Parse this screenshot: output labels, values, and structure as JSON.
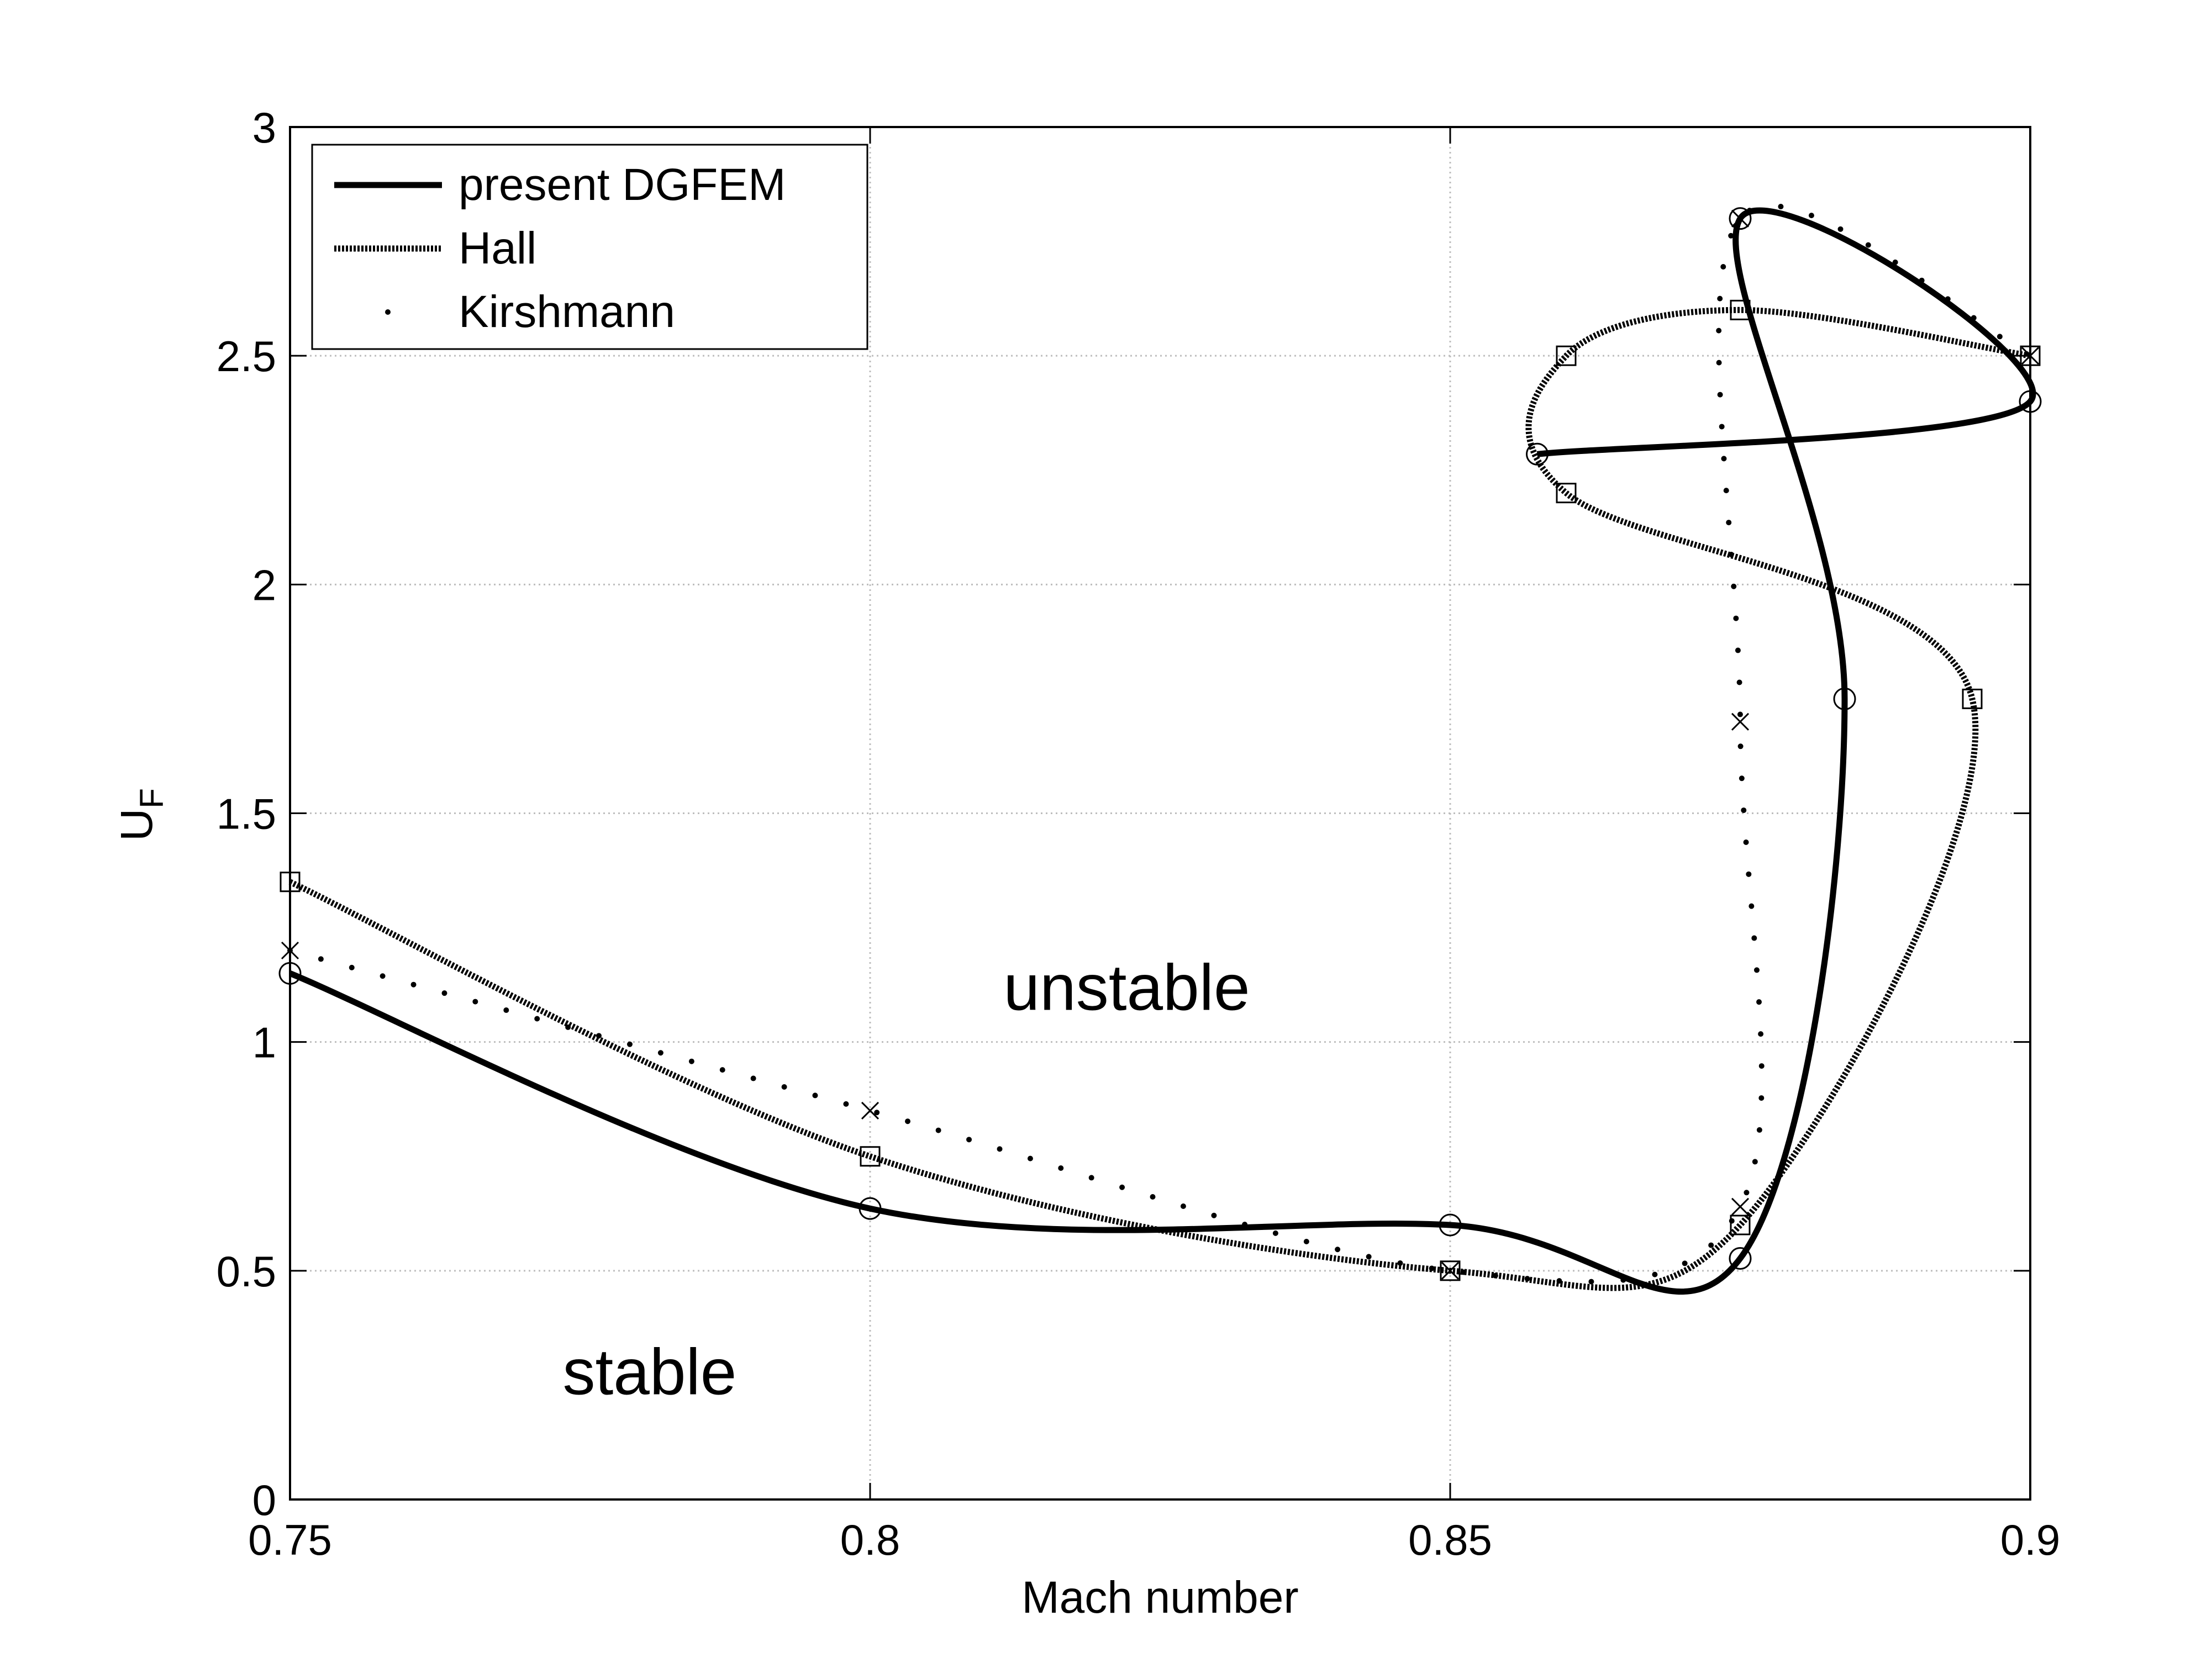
{
  "chart_data": {
    "type": "line",
    "xlabel": "Mach number",
    "ylabel": "U",
    "ylabel_subscript": "F",
    "xlim": [
      0.75,
      0.9
    ],
    "ylim": [
      0,
      3
    ],
    "xticks": [
      0.75,
      0.8,
      0.85,
      0.9
    ],
    "yticks": [
      0,
      0.5,
      1,
      1.5,
      2,
      2.5,
      3
    ],
    "xtick_labels": [
      "0.75",
      "0.8",
      "0.85",
      "0.9"
    ],
    "ytick_labels": [
      "0",
      "0.5",
      "1",
      "1.5",
      "2",
      "2.5",
      "3"
    ],
    "grid": true,
    "legend_position": "top-left",
    "annotations": [
      {
        "text": "unstable",
        "x": 0.8115,
        "y": 1.07
      },
      {
        "text": "stable",
        "x": 0.7735,
        "y": 0.23
      }
    ],
    "series": [
      {
        "name": "present DGFEM",
        "style": "solid-thick",
        "marker": "circle",
        "points": [
          [
            0.75,
            1.15
          ],
          [
            0.8,
            0.636
          ],
          [
            0.85,
            0.6
          ],
          [
            0.875,
            0.527
          ],
          [
            0.884,
            1.75
          ],
          [
            0.875,
            2.8
          ],
          [
            0.9,
            2.4
          ],
          [
            0.8575,
            2.285
          ]
        ],
        "markers": [
          [
            0.75,
            1.15
          ],
          [
            0.8,
            0.636
          ],
          [
            0.85,
            0.6
          ],
          [
            0.875,
            0.527
          ],
          [
            0.884,
            1.75
          ],
          [
            0.8575,
            2.285
          ],
          [
            0.875,
            2.8
          ],
          [
            0.9,
            2.4
          ]
        ]
      },
      {
        "name": "Hall",
        "style": "dashed-thick",
        "marker": "square",
        "points": [
          [
            0.75,
            1.35
          ],
          [
            0.8,
            0.75
          ],
          [
            0.85,
            0.5
          ],
          [
            0.875,
            0.6
          ],
          [
            0.895,
            1.75
          ],
          [
            0.86,
            2.2
          ],
          [
            0.86,
            2.5
          ],
          [
            0.875,
            2.6
          ],
          [
            0.9,
            2.5
          ]
        ],
        "markers": [
          [
            0.75,
            1.35
          ],
          [
            0.8,
            0.75
          ],
          [
            0.85,
            0.5
          ],
          [
            0.875,
            0.6
          ],
          [
            0.895,
            1.75
          ],
          [
            0.86,
            2.2
          ],
          [
            0.86,
            2.5
          ],
          [
            0.875,
            2.6
          ],
          [
            0.9,
            2.5
          ]
        ]
      },
      {
        "name": "Kirshmann",
        "style": "dotted",
        "marker": "x",
        "points": [
          [
            0.75,
            1.2
          ],
          [
            0.8,
            0.85
          ],
          [
            0.85,
            0.5
          ],
          [
            0.875,
            0.64
          ],
          [
            0.875,
            1.7
          ],
          [
            0.875,
            2.8
          ],
          [
            0.9,
            2.5
          ]
        ],
        "markers": [
          [
            0.75,
            1.2
          ],
          [
            0.8,
            0.85
          ],
          [
            0.85,
            0.5
          ],
          [
            0.875,
            0.64
          ],
          [
            0.875,
            1.7
          ],
          [
            0.875,
            2.8
          ],
          [
            0.9,
            2.5
          ]
        ]
      }
    ]
  }
}
